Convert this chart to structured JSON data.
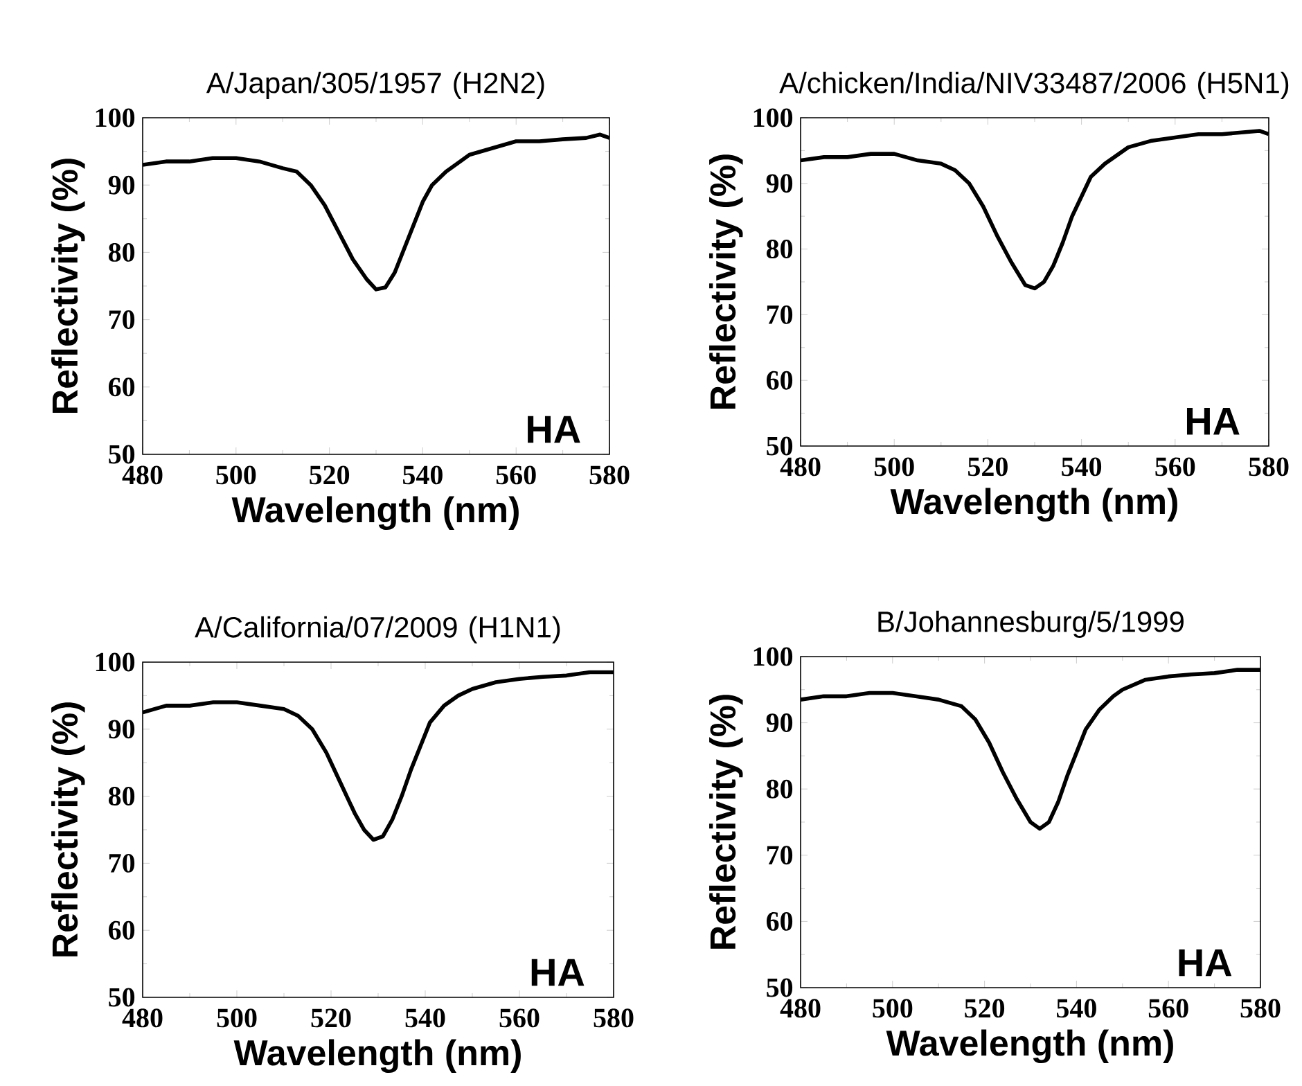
{
  "chart_data": [
    {
      "type": "line",
      "title": "A/Japan/305/1957 (H2N2)",
      "xlabel": "Wavelength (nm)",
      "ylabel": "Reflectivity (%)",
      "annotations": [
        "HA"
      ],
      "color": "#000000",
      "xlim": [
        480,
        580
      ],
      "ylim": [
        50,
        100
      ],
      "xticks": [
        480,
        500,
        520,
        540,
        560,
        580
      ],
      "yticks": [
        50,
        60,
        70,
        80,
        90,
        100
      ],
      "x": [
        480,
        485,
        490,
        495,
        500,
        505,
        510,
        513,
        516,
        519,
        522,
        525,
        528,
        530,
        532,
        534,
        536,
        538,
        540,
        542,
        545,
        548,
        550,
        555,
        560,
        565,
        570,
        575,
        578,
        580
      ],
      "values": [
        93,
        93.5,
        93.5,
        94,
        94,
        93.5,
        92.5,
        92,
        90,
        87,
        83,
        79,
        76,
        74.5,
        74.8,
        77,
        80.5,
        84,
        87.5,
        90,
        92,
        93.5,
        94.5,
        95.5,
        96.5,
        96.5,
        96.8,
        97,
        97.5,
        97
      ]
    },
    {
      "type": "line",
      "title": "A/chicken/India/NIV33487/2006 (H5N1)",
      "xlabel": "Wavelength (nm)",
      "ylabel": "Reflectivity (%)",
      "annotations": [
        "HA"
      ],
      "color": "#000000",
      "xlim": [
        480,
        580
      ],
      "ylim": [
        50,
        100
      ],
      "xticks": [
        480,
        500,
        520,
        540,
        560,
        580
      ],
      "yticks": [
        50,
        60,
        70,
        80,
        90,
        100
      ],
      "x": [
        480,
        485,
        490,
        495,
        500,
        505,
        510,
        513,
        516,
        519,
        522,
        525,
        528,
        530,
        532,
        534,
        536,
        538,
        540,
        542,
        545,
        548,
        550,
        555,
        560,
        565,
        570,
        575,
        578,
        580
      ],
      "values": [
        93.5,
        94,
        94,
        94.5,
        94.5,
        93.5,
        93,
        92,
        90,
        86.5,
        82,
        78,
        74.5,
        74,
        75,
        77.5,
        81,
        85,
        88,
        91,
        93,
        94.5,
        95.5,
        96.5,
        97,
        97.5,
        97.5,
        97.8,
        98,
        97.5
      ]
    },
    {
      "type": "line",
      "title": "A/California/07/2009 (H1N1)",
      "xlabel": "Wavelength (nm)",
      "ylabel": "Reflectivity (%)",
      "annotations": [
        "HA"
      ],
      "color": "#000000",
      "xlim": [
        480,
        580
      ],
      "ylim": [
        50,
        100
      ],
      "xticks": [
        480,
        500,
        520,
        540,
        560,
        580
      ],
      "yticks": [
        50,
        60,
        70,
        80,
        90,
        100
      ],
      "x": [
        480,
        485,
        490,
        495,
        500,
        505,
        510,
        513,
        516,
        519,
        522,
        525,
        527,
        529,
        531,
        533,
        535,
        537,
        539,
        541,
        544,
        547,
        550,
        555,
        560,
        565,
        570,
        575,
        580
      ],
      "values": [
        92.5,
        93.5,
        93.5,
        94,
        94,
        93.5,
        93,
        92,
        90,
        86.5,
        82,
        77.5,
        75,
        73.5,
        74,
        76.5,
        80,
        84,
        87.5,
        91,
        93.5,
        95,
        96,
        97,
        97.5,
        97.8,
        98,
        98.5,
        98.5
      ]
    },
    {
      "type": "line",
      "title": "B/Johannesburg/5/1999",
      "xlabel": "Wavelength (nm)",
      "ylabel": "Reflectivity (%)",
      "annotations": [
        "HA"
      ],
      "color": "#000000",
      "xlim": [
        480,
        580
      ],
      "ylim": [
        50,
        100
      ],
      "xticks": [
        480,
        500,
        520,
        540,
        560,
        580
      ],
      "yticks": [
        50,
        60,
        70,
        80,
        90,
        100
      ],
      "x": [
        480,
        485,
        490,
        495,
        500,
        505,
        510,
        515,
        518,
        521,
        524,
        527,
        530,
        532,
        534,
        536,
        538,
        540,
        542,
        545,
        548,
        550,
        555,
        560,
        565,
        570,
        575,
        580
      ],
      "values": [
        93.5,
        94,
        94,
        94.5,
        94.5,
        94,
        93.5,
        92.5,
        90.5,
        87,
        82.5,
        78.5,
        75,
        74,
        75,
        78,
        82,
        85.5,
        89,
        92,
        94,
        95,
        96.5,
        97,
        97.3,
        97.5,
        98,
        98
      ]
    }
  ]
}
